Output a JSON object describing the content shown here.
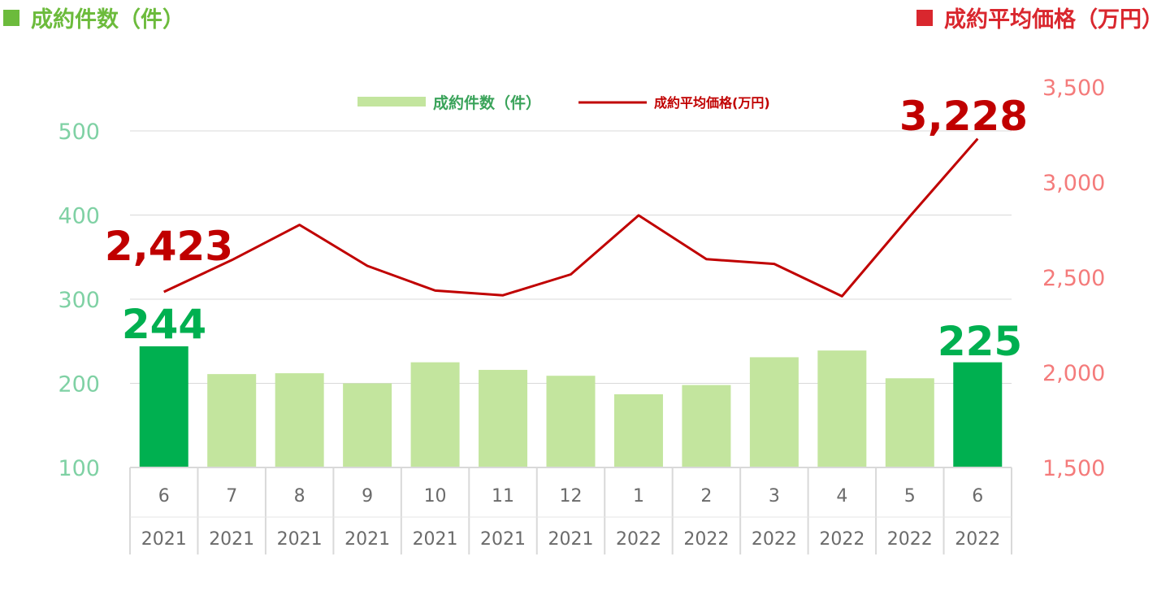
{
  "header": {
    "left_title": "成約件数（件）",
    "right_title": "成約平均価格（万円）"
  },
  "colors": {
    "bar": "#c3e59e",
    "bar_highlight": "#00b050",
    "line": "#c00000",
    "left_axis_text": "#7fd1a4",
    "right_axis_text": "#f47b7b",
    "grid": "#d9d9d9"
  },
  "chart_data": {
    "type": "bar+line",
    "categories": [
      {
        "month": "6",
        "year": "2021"
      },
      {
        "month": "7",
        "year": "2021"
      },
      {
        "month": "8",
        "year": "2021"
      },
      {
        "month": "9",
        "year": "2021"
      },
      {
        "month": "10",
        "year": "2021"
      },
      {
        "month": "11",
        "year": "2021"
      },
      {
        "month": "12",
        "year": "2021"
      },
      {
        "month": "1",
        "year": "2022"
      },
      {
        "month": "2",
        "year": "2022"
      },
      {
        "month": "3",
        "year": "2022"
      },
      {
        "month": "4",
        "year": "2022"
      },
      {
        "month": "5",
        "year": "2022"
      },
      {
        "month": "6",
        "year": "2022"
      }
    ],
    "series": [
      {
        "name": "成約件数（件）",
        "type": "bar",
        "axis": "left",
        "values": [
          244,
          211,
          212,
          200,
          225,
          216,
          209,
          187,
          198,
          231,
          239,
          206,
          225
        ],
        "highlight": [
          0,
          12
        ]
      },
      {
        "name": "成約平均価格(万円)",
        "type": "line",
        "axis": "right",
        "values": [
          2423,
          2590,
          2775,
          2560,
          2430,
          2405,
          2515,
          2825,
          2595,
          2570,
          2400,
          2820,
          3228
        ]
      }
    ],
    "left_axis": {
      "ylim": [
        100,
        500
      ],
      "ticks": [
        "100",
        "200",
        "300",
        "400",
        "500"
      ]
    },
    "right_axis": {
      "ylim": [
        1500,
        3500
      ],
      "ticks": [
        "1,500",
        "2,000",
        "2,500",
        "3,000",
        "3,500"
      ]
    },
    "data_labels": {
      "price_first": "2,423",
      "price_last": "3,228",
      "count_first": "244",
      "count_last": "225"
    },
    "legend": {
      "position": "top",
      "bar_label": "成約件数（件）",
      "line_label": "成約平均価格(万円)"
    },
    "grid": true
  }
}
